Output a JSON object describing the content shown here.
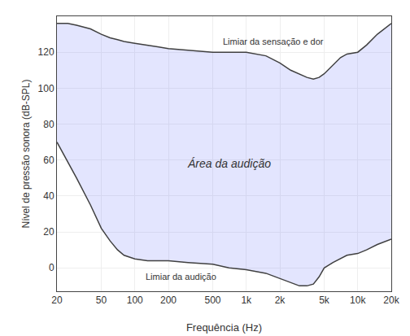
{
  "chart_data": {
    "type": "area",
    "xlabel": "Frequência (Hz)",
    "ylabel": "Nível de pressão sonora (dB-SPL)",
    "log": "x",
    "grid": true,
    "xlim": [
      20,
      20000
    ],
    "xticks": [
      20,
      50,
      100,
      200,
      500,
      {
        "value": 1000,
        "label": "1k"
      },
      {
        "value": 2000,
        "label": "2k"
      },
      {
        "value": 5000,
        "label": "5k"
      },
      {
        "value": 10000,
        "label": "10k"
      },
      {
        "value": 20000,
        "label": "20k"
      }
    ],
    "ylim": [
      -13,
      140
    ],
    "yticks": [
      0,
      20,
      40,
      60,
      80,
      100,
      120
    ],
    "series": [
      {
        "color": "#404040",
        "x": [
          20,
          25,
          30,
          40,
          50,
          60,
          70,
          80,
          100,
          130,
          160,
          200,
          300,
          500,
          700,
          1000,
          1500,
          2000,
          2500,
          3000,
          3500,
          4000,
          4500,
          5000,
          6000,
          7000,
          8000,
          10000,
          12000,
          15000,
          20000
        ],
        "values": [
          136,
          136,
          135,
          133,
          130,
          128,
          127,
          126,
          125,
          124,
          123,
          122,
          121,
          120,
          120,
          120,
          118,
          114,
          110,
          108,
          106,
          105,
          106,
          108,
          113,
          117,
          119,
          120,
          124,
          130,
          136
        ]
      },
      {
        "color": "#404040",
        "x": [
          20,
          30,
          40,
          50,
          60,
          70,
          80,
          100,
          130,
          200,
          300,
          500,
          700,
          1000,
          1500,
          2000,
          2500,
          3000,
          3500,
          4000,
          4500,
          5000,
          6000,
          7000,
          8000,
          10000,
          12000,
          15000,
          20000
        ],
        "values": [
          70,
          50,
          35,
          22,
          15,
          10,
          7,
          5,
          4,
          4,
          3,
          2,
          0,
          -1,
          -3,
          -6,
          -8,
          -10,
          -10,
          -9,
          -5,
          0,
          3,
          5,
          7,
          8,
          10,
          13,
          16
        ]
      }
    ],
    "annotations": [
      {
        "text": "Área da audição",
        "x": 700,
        "y": 58
      },
      {
        "text": "Limiar da sensação e dor",
        "x": 600,
        "y": 126
      },
      {
        "text": "Limiar da audição",
        "x": 120,
        "y": -5
      }
    ]
  }
}
